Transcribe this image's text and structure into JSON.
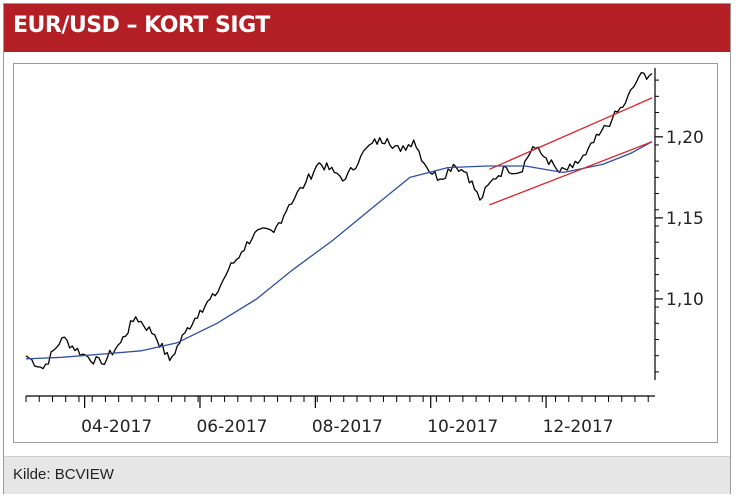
{
  "header": {
    "title": "EUR/USD – KORT SIGT"
  },
  "footer": {
    "source": "Kilde: BCVIEW"
  },
  "colors": {
    "header_bg": "#b31f24",
    "price_line": "#000000",
    "moving_average": "#2e4f9e",
    "channel": "#d9242b"
  },
  "chart_data": {
    "type": "line",
    "title": "EUR/USD – KORT SIGT",
    "xlabel": "",
    "ylabel": "",
    "x_range": [
      "2017-03-01",
      "2018-01-26"
    ],
    "ylim": [
      1.05,
      1.24
    ],
    "y_axis_position": "right",
    "grid": false,
    "x_ticks": [
      {
        "date": "2017-04-01",
        "label": "04-2017"
      },
      {
        "date": "2017-06-01",
        "label": "06-2017"
      },
      {
        "date": "2017-08-01",
        "label": "08-2017"
      },
      {
        "date": "2017-10-01",
        "label": "10-2017"
      },
      {
        "date": "2017-12-01",
        "label": "12-2017"
      }
    ],
    "y_ticks": [
      {
        "value": 1.1,
        "label": "1,10"
      },
      {
        "value": 1.15,
        "label": "1,15"
      },
      {
        "value": 1.2,
        "label": "1,20"
      }
    ],
    "series": [
      {
        "style": "price",
        "x": [
          "2017-03-01",
          "2017-03-10",
          "2017-03-20",
          "2017-03-31",
          "2017-04-10",
          "2017-04-20",
          "2017-04-28",
          "2017-05-08",
          "2017-05-16",
          "2017-05-24",
          "2017-06-01",
          "2017-06-09",
          "2017-06-16",
          "2017-06-23",
          "2017-06-30",
          "2017-07-10",
          "2017-07-18",
          "2017-07-27",
          "2017-08-03",
          "2017-08-11",
          "2017-08-17",
          "2017-08-25",
          "2017-08-31",
          "2017-09-08",
          "2017-09-15",
          "2017-09-22",
          "2017-09-29",
          "2017-10-06",
          "2017-10-13",
          "2017-10-20",
          "2017-10-27",
          "2017-11-03",
          "2017-11-10",
          "2017-11-17",
          "2017-11-24",
          "2017-12-01",
          "2017-12-08",
          "2017-12-15",
          "2017-12-22",
          "2017-12-29",
          "2018-01-05",
          "2018-01-12",
          "2018-01-19",
          "2018-01-26"
        ],
        "values": [
          1.065,
          1.057,
          1.076,
          1.066,
          1.06,
          1.073,
          1.089,
          1.078,
          1.062,
          1.079,
          1.093,
          1.102,
          1.118,
          1.129,
          1.141,
          1.141,
          1.158,
          1.172,
          1.184,
          1.178,
          1.174,
          1.188,
          1.196,
          1.199,
          1.191,
          1.198,
          1.181,
          1.174,
          1.183,
          1.178,
          1.161,
          1.174,
          1.181,
          1.178,
          1.194,
          1.187,
          1.178,
          1.181,
          1.189,
          1.201,
          1.211,
          1.221,
          1.237,
          1.239
        ]
      },
      {
        "style": "moving-average",
        "x": [
          "2017-03-01",
          "2017-03-20",
          "2017-04-10",
          "2017-05-01",
          "2017-05-20",
          "2017-06-10",
          "2017-07-01",
          "2017-07-20",
          "2017-08-10",
          "2017-09-01",
          "2017-09-20",
          "2017-10-10",
          "2017-10-31",
          "2017-11-20",
          "2017-12-10",
          "2017-12-31",
          "2018-01-15",
          "2018-01-26"
        ],
        "values": [
          1.063,
          1.064,
          1.066,
          1.068,
          1.073,
          1.085,
          1.1,
          1.118,
          1.136,
          1.157,
          1.175,
          1.181,
          1.182,
          1.182,
          1.178,
          1.183,
          1.19,
          1.197
        ]
      },
      {
        "style": "channel-upper",
        "x": [
          "2017-11-01",
          "2018-01-26"
        ],
        "values": [
          1.18,
          1.224
        ]
      },
      {
        "style": "channel-lower",
        "x": [
          "2017-11-01",
          "2018-01-26"
        ],
        "values": [
          1.158,
          1.197
        ]
      }
    ]
  }
}
